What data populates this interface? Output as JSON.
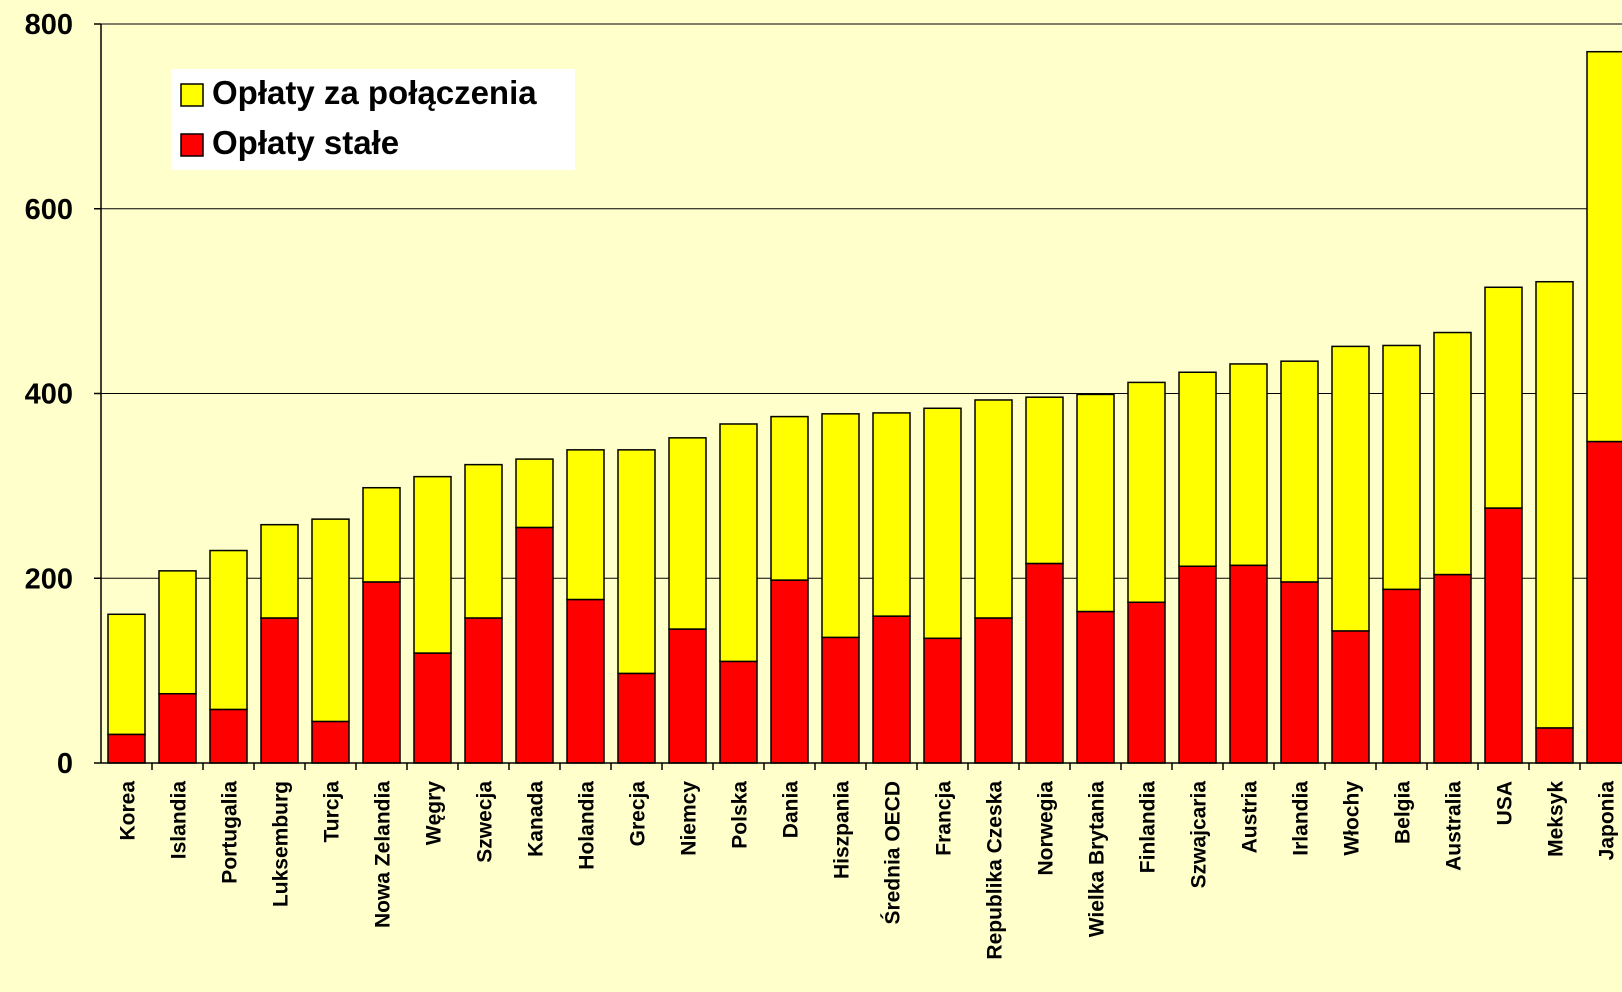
{
  "chart_data": {
    "type": "stacked_bar",
    "categories": [
      "Korea",
      "Islandia",
      "Portugalia",
      "Luksemburg",
      "Turcja",
      "Nowa Zelandia",
      "Węgry",
      "Szwecja",
      "Kanada",
      "Holandia",
      "Grecja",
      "Niemcy",
      "Polska",
      "Dania",
      "Hiszpania",
      "Średnia OECD",
      "Francja",
      "Republika Czeska",
      "Norwegia",
      "Wielka Brytania",
      "Finlandia",
      "Szwajcaria",
      "Austria",
      "Irlandia",
      "Włochy",
      "Belgia",
      "Australia",
      "USA",
      "Meksyk",
      "Japonia"
    ],
    "series": [
      {
        "name": "Opłaty stałe",
        "color": "#ff0000",
        "values": [
          31,
          75,
          58,
          157,
          45,
          196,
          119,
          157,
          255,
          177,
          97,
          145,
          110,
          198,
          136,
          159,
          135,
          157,
          216,
          164,
          174,
          213,
          214,
          196,
          143,
          188,
          204,
          276,
          38,
          348
        ]
      },
      {
        "name": "Opłaty za połączenia",
        "color": "#ffff00",
        "values": [
          130,
          133,
          172,
          101,
          219,
          102,
          191,
          166,
          74,
          162,
          242,
          207,
          257,
          177,
          242,
          220,
          249,
          236,
          180,
          235,
          238,
          210,
          218,
          239,
          308,
          264,
          262,
          239,
          483,
          422
        ]
      }
    ],
    "ylim": [
      0,
      800
    ],
    "yticks": [
      0,
      200,
      400,
      600,
      800
    ],
    "grid": true
  }
}
